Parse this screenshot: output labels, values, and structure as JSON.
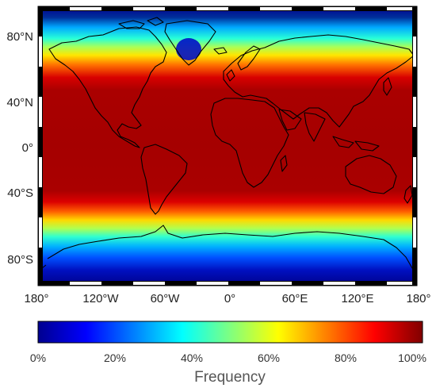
{
  "map": {
    "lat_ticks": [
      "80°N",
      "40°N",
      "0°",
      "40°S",
      "80°S"
    ],
    "lon_ticks": [
      "180°",
      "120°W",
      "60°W",
      "0°",
      "60°E",
      "120°E",
      "180°"
    ]
  },
  "colorbar": {
    "title": "Frequency",
    "ticks": [
      "0%",
      "20%",
      "40%",
      "60%",
      "80%",
      "100%"
    ],
    "colormap": [
      "#00008f",
      "#0000ff",
      "#00ffff",
      "#ffff00",
      "#ff0000",
      "#800000"
    ]
  },
  "colors": {
    "background": "#ffffff",
    "frame": "#000000",
    "coastline": "#000000"
  },
  "icons": [
    "coastline-outline"
  ]
}
